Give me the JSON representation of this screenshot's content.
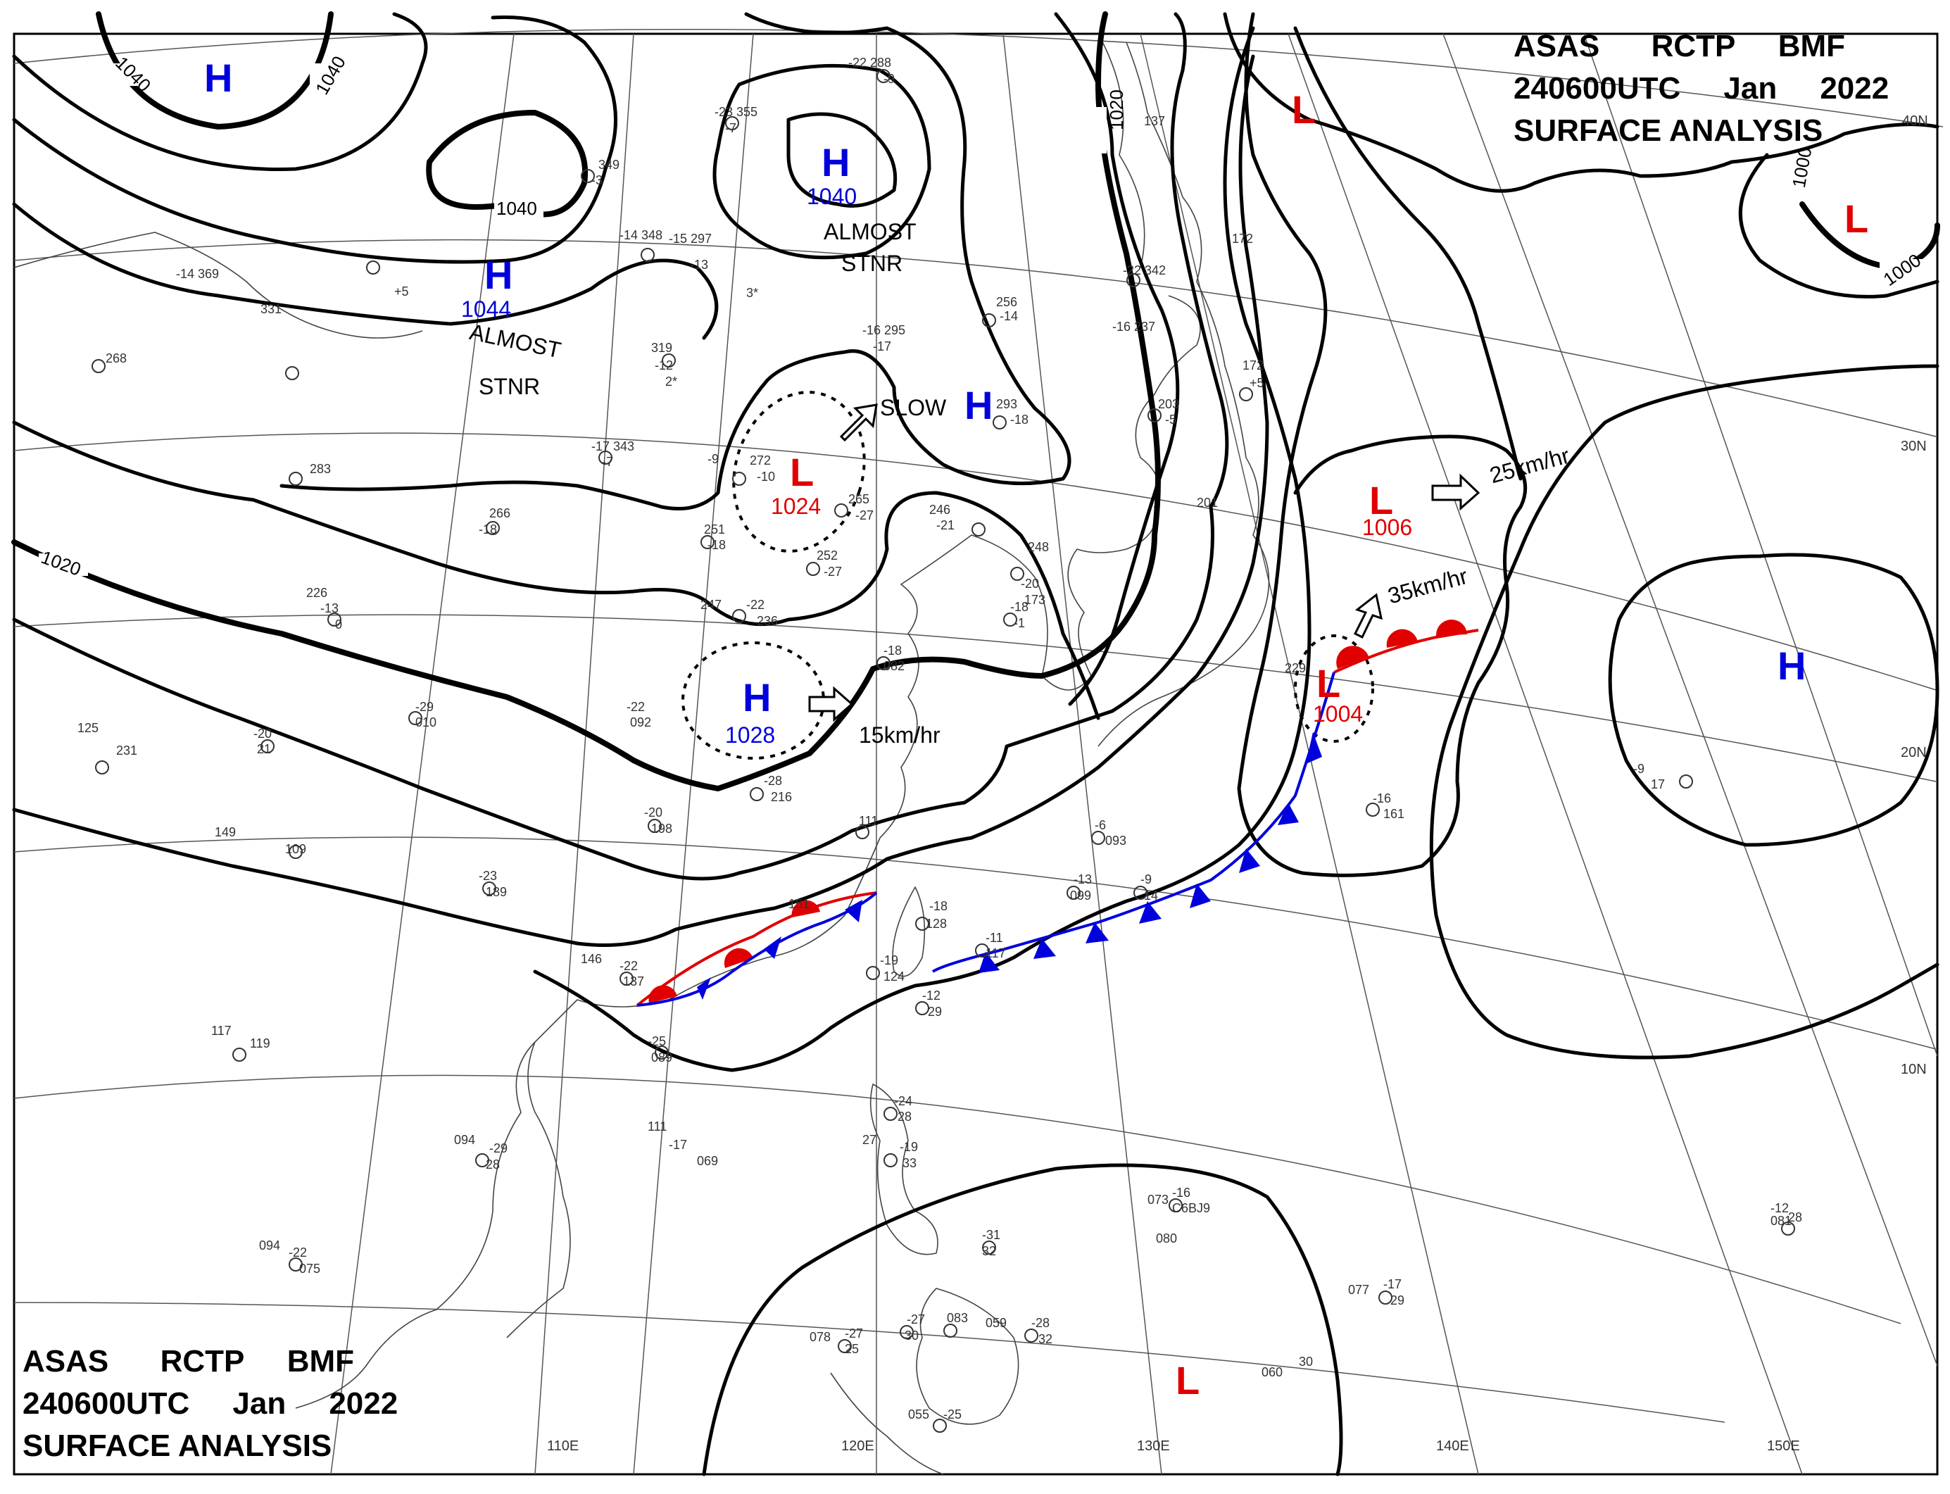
{
  "header_top": {
    "line1": "ASAS      RCTP     BMF",
    "line2": "240600UTC     Jan     2022",
    "line3": "SURFACE  ANALYSIS"
  },
  "header_bottom": {
    "line1": "ASAS      RCTP     BMF",
    "line2": "240600UTC     Jan     2022",
    "line3": "SURFACE  ANALYSIS"
  },
  "longitude_labels": [
    "110E",
    "120E",
    "130E",
    "140E",
    "150E"
  ],
  "latitude_labels": [
    "40N",
    "30N",
    "20N",
    "10N"
  ],
  "isobar_labels": [
    "1040",
    "1040",
    "1040",
    "1020",
    "1020",
    "1000",
    "1000"
  ],
  "pressure_centers": [
    {
      "type": "H",
      "value": ""
    },
    {
      "type": "H",
      "value": "1044",
      "note": [
        "ALMOST",
        "STNR"
      ]
    },
    {
      "type": "H",
      "value": "1040",
      "note": [
        "ALMOST",
        "STNR"
      ]
    },
    {
      "type": "H",
      "value": "",
      "note": [
        "SLOW"
      ]
    },
    {
      "type": "L",
      "value": "1024"
    },
    {
      "type": "H",
      "value": "1028",
      "motion": "15km/hr"
    },
    {
      "type": "L",
      "value": ""
    },
    {
      "type": "L",
      "value": "1006",
      "motion": "25km/hr"
    },
    {
      "type": "L",
      "value": "1004",
      "motion": "35km/hr"
    },
    {
      "type": "L",
      "value": ""
    },
    {
      "type": "H",
      "value": ""
    },
    {
      "type": "L",
      "value": ""
    }
  ],
  "station_text": [
    "-22 288",
    "-9",
    "-23 355",
    "-7",
    "349",
    "-3",
    "-14 348",
    "-15 297",
    "-13",
    "3*",
    "-14 369",
    "+5",
    "331",
    "268",
    "319",
    "-12",
    "2*",
    "256",
    "-14",
    "-16 295",
    "-17",
    "-22 342",
    "-16 237",
    "203",
    "-5",
    "172",
    "+5",
    "172",
    "137",
    "293",
    "-18",
    "-9",
    "272",
    "-10",
    "-17 343",
    "-7",
    "283",
    "266",
    "-18",
    "265",
    "-27",
    "246",
    "-21",
    "251",
    "-18",
    "252",
    "-27",
    "248",
    "-20",
    "173",
    "201",
    "-18",
    "-1",
    "226",
    "-13",
    "-0",
    "247",
    "-22",
    "236",
    "-18",
    "082",
    "229",
    "-22",
    "092",
    "-29",
    "010",
    "-20",
    "21",
    "125",
    "231",
    "-28",
    "216",
    "-20",
    "198",
    "111",
    "-6",
    "093",
    "-16",
    "161",
    "-9",
    "17",
    "149",
    "109",
    "-23",
    "189",
    "151",
    "-18",
    "128",
    "-11",
    "117",
    "-13",
    "099",
    "-9",
    "14",
    "146",
    "-22",
    "137",
    "-19",
    "124",
    "-12",
    "29",
    "117",
    "119",
    "-25",
    "089",
    "-24",
    "28",
    "111",
    "-17",
    "069",
    "-19",
    "33",
    "094",
    "-29",
    "28",
    "27",
    "073",
    "-16",
    "C6BJ9",
    "080",
    "-31",
    "32",
    "094",
    "-22",
    "075",
    "-27",
    "30",
    "083",
    "059",
    "-28",
    "32",
    "078",
    "-27",
    "25",
    "060",
    "30",
    "077",
    "-17",
    "29",
    "081",
    "-12",
    "28",
    "055",
    "-25"
  ]
}
